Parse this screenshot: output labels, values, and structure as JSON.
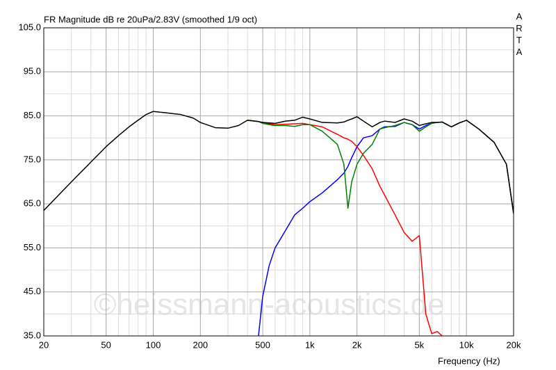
{
  "chart_data": {
    "type": "line",
    "title": "FR Magnitude dB re 20uPa/2.83V (smoothed 1/9 oct)",
    "side_label": "ARTA",
    "watermark": "©heissmann-acoustics.de",
    "x_label": "Frequency (Hz)",
    "xscale": "log",
    "grid": true,
    "xlim": [
      20,
      20000
    ],
    "ylim": [
      35,
      105
    ],
    "xticks": [
      20,
      50,
      100,
      200,
      500,
      {
        "value": 1000,
        "label": "1k"
      },
      {
        "value": 2000,
        "label": "2k"
      },
      {
        "value": 5000,
        "label": "5k"
      },
      {
        "value": 10000,
        "label": "10k"
      },
      {
        "value": 20000,
        "label": "20k"
      }
    ],
    "xticks_minor": [
      30,
      40,
      60,
      70,
      80,
      90,
      300,
      400,
      600,
      700,
      800,
      900,
      3000,
      4000,
      6000,
      7000,
      8000,
      9000
    ],
    "yticks": [
      {
        "value": 105,
        "label": "105.0"
      },
      {
        "value": 95,
        "label": "95.0"
      },
      {
        "value": 85,
        "label": "85.0"
      },
      {
        "value": 75,
        "label": "75.0"
      },
      {
        "value": 65,
        "label": "65.0"
      },
      {
        "value": 55,
        "label": "55.0"
      },
      {
        "value": 45,
        "label": "45.0"
      },
      {
        "value": 35,
        "label": "35.0"
      }
    ],
    "yticks_minor": [
      100,
      90,
      80,
      70,
      60,
      50,
      40
    ],
    "x": [
      20,
      30,
      40,
      50,
      60,
      70,
      80,
      90,
      100,
      120,
      150,
      180,
      200,
      250,
      300,
      350,
      400,
      470,
      500,
      550,
      600,
      700,
      800,
      900,
      1000,
      1200,
      1500,
      1650,
      1750,
      1850,
      2000,
      2200,
      2500,
      2800,
      3000,
      3500,
      4000,
      4500,
      5000,
      5500,
      6000,
      6500,
      7000,
      8000,
      9000,
      10000,
      12000,
      15000,
      18000,
      20000
    ],
    "series": [
      {
        "color": "#0000ff",
        "values": [
          null,
          null,
          null,
          null,
          null,
          null,
          null,
          null,
          null,
          null,
          null,
          null,
          null,
          null,
          null,
          null,
          null,
          35,
          44,
          51,
          55,
          59,
          62.5,
          64,
          65.5,
          67.5,
          70.5,
          72,
          73.5,
          75.5,
          78,
          80,
          80.5,
          82,
          82.5,
          82.6,
          83.5,
          83,
          82,
          82.8,
          83.3,
          83.5,
          83.6,
          82.5,
          83.4,
          84,
          82,
          79,
          74,
          62.8
        ]
      },
      {
        "color": "#ff0000",
        "values": [
          null,
          null,
          null,
          null,
          null,
          null,
          null,
          null,
          null,
          null,
          null,
          null,
          null,
          null,
          null,
          null,
          84,
          83.7,
          83.5,
          83.2,
          83,
          83.1,
          83.2,
          83.3,
          83,
          82.5,
          80.8,
          80,
          79.7,
          79.2,
          78,
          76,
          73,
          69,
          67,
          62.5,
          58.5,
          56.5,
          57.8,
          40,
          35.5,
          36,
          35,
          null,
          null,
          null,
          null,
          null,
          null,
          null
        ]
      },
      {
        "color": "#008000",
        "values": [
          null,
          null,
          null,
          null,
          null,
          null,
          null,
          null,
          null,
          null,
          null,
          null,
          null,
          null,
          null,
          null,
          84,
          83.7,
          83.3,
          83,
          82.8,
          82.8,
          82.6,
          83,
          83,
          81.5,
          78.5,
          74,
          64,
          70,
          74,
          76.5,
          78.5,
          82,
          82.3,
          82.8,
          83.5,
          83,
          81.5,
          82.5,
          83.3,
          83.5,
          83.6,
          82.5,
          83.4,
          84,
          82,
          79,
          74,
          62.8
        ]
      },
      {
        "color": "#000000",
        "values": [
          63.5,
          70,
          74.5,
          78,
          80.5,
          82.5,
          84,
          85.3,
          86,
          85.7,
          85.3,
          84.5,
          83.5,
          82.3,
          82.2,
          82.8,
          84,
          83.7,
          83.5,
          83.4,
          83.3,
          83.8,
          84,
          84.7,
          84.3,
          83.5,
          83.4,
          83.6,
          84,
          84.3,
          84.8,
          83.8,
          82.5,
          83.5,
          83.8,
          83.5,
          84.3,
          83.8,
          82.8,
          83.2,
          83.5,
          83.5,
          83.6,
          82.5,
          83.4,
          84,
          82,
          79,
          74,
          62.8
        ]
      }
    ]
  }
}
